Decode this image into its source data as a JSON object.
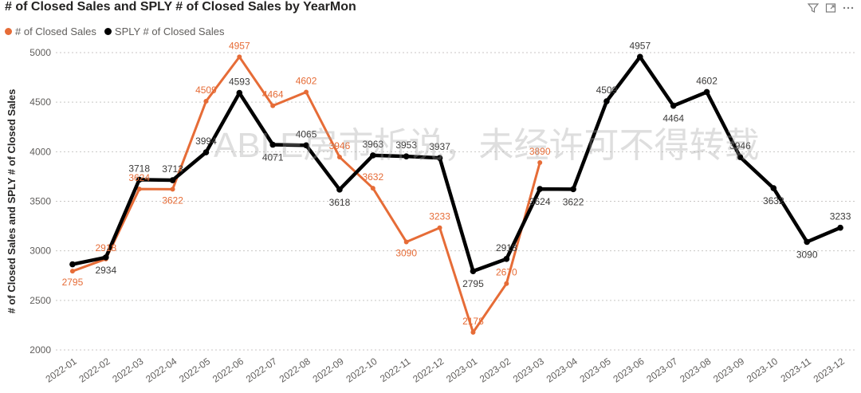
{
  "header": {
    "title": "# of Closed Sales and SPLY # of Closed Sales by YearMon",
    "filter_icon": "filter-icon",
    "focus_icon": "focus-mode-icon",
    "more_icon": "more-options-icon"
  },
  "watermark": "ABLE房市析说，未经许可不得转载",
  "chart_data": {
    "type": "line",
    "title": "# of Closed Sales and SPLY # of Closed Sales by YearMon",
    "xlabel": "",
    "ylabel": "# of Closed Sales and SPLY # of Closed Sales",
    "ylim": [
      2000,
      5000
    ],
    "yticks": [
      2000,
      2500,
      3000,
      3500,
      4000,
      4500,
      5000
    ],
    "grid": true,
    "legend_position": "top-left",
    "categories": [
      "2022-01",
      "2022-02",
      "2022-03",
      "2022-04",
      "2022-05",
      "2022-06",
      "2022-07",
      "2022-08",
      "2022-09",
      "2022-10",
      "2022-11",
      "2022-12",
      "2023-01",
      "2023-02",
      "2023-03",
      "2023-04",
      "2023-05",
      "2023-06",
      "2023-07",
      "2023-08",
      "2023-09",
      "2023-10",
      "2023-11",
      "2023-12"
    ],
    "series": [
      {
        "name": "# of Closed Sales",
        "color": "#E66C37",
        "values": [
          2795,
          2918,
          3624,
          3622,
          4509,
          4957,
          4464,
          4602,
          3946,
          3632,
          3090,
          3233,
          2178,
          2670,
          3890,
          null,
          null,
          null,
          null,
          null,
          null,
          null,
          null,
          null
        ],
        "labels": [
          "2795",
          "2918",
          "3624",
          "3622",
          "4509",
          "4957",
          "4464",
          "4602",
          "3946",
          "3632",
          "3090",
          "3233",
          "2178",
          "2670",
          "3890",
          null,
          null,
          null,
          null,
          null,
          null,
          null,
          null,
          null
        ]
      },
      {
        "name": "SPLY # of Closed Sales",
        "color": "#000000",
        "values": [
          2864,
          2934,
          3718,
          3713,
          3994,
          4593,
          4071,
          4065,
          3618,
          3963,
          3953,
          3937,
          2795,
          2918,
          3624,
          3622,
          4509,
          4957,
          4464,
          4602,
          3946,
          3632,
          3090,
          3233
        ],
        "labels": [
          "",
          "2934",
          "3718",
          "3713",
          "3994",
          "4593",
          "4071",
          "4065",
          "3618",
          "3963",
          "3953",
          "3937",
          "2795",
          "2918",
          "3624",
          "3622",
          "4509",
          "4957",
          "4464",
          "4602",
          "3946",
          "3632",
          "3090",
          "3233"
        ]
      }
    ]
  }
}
